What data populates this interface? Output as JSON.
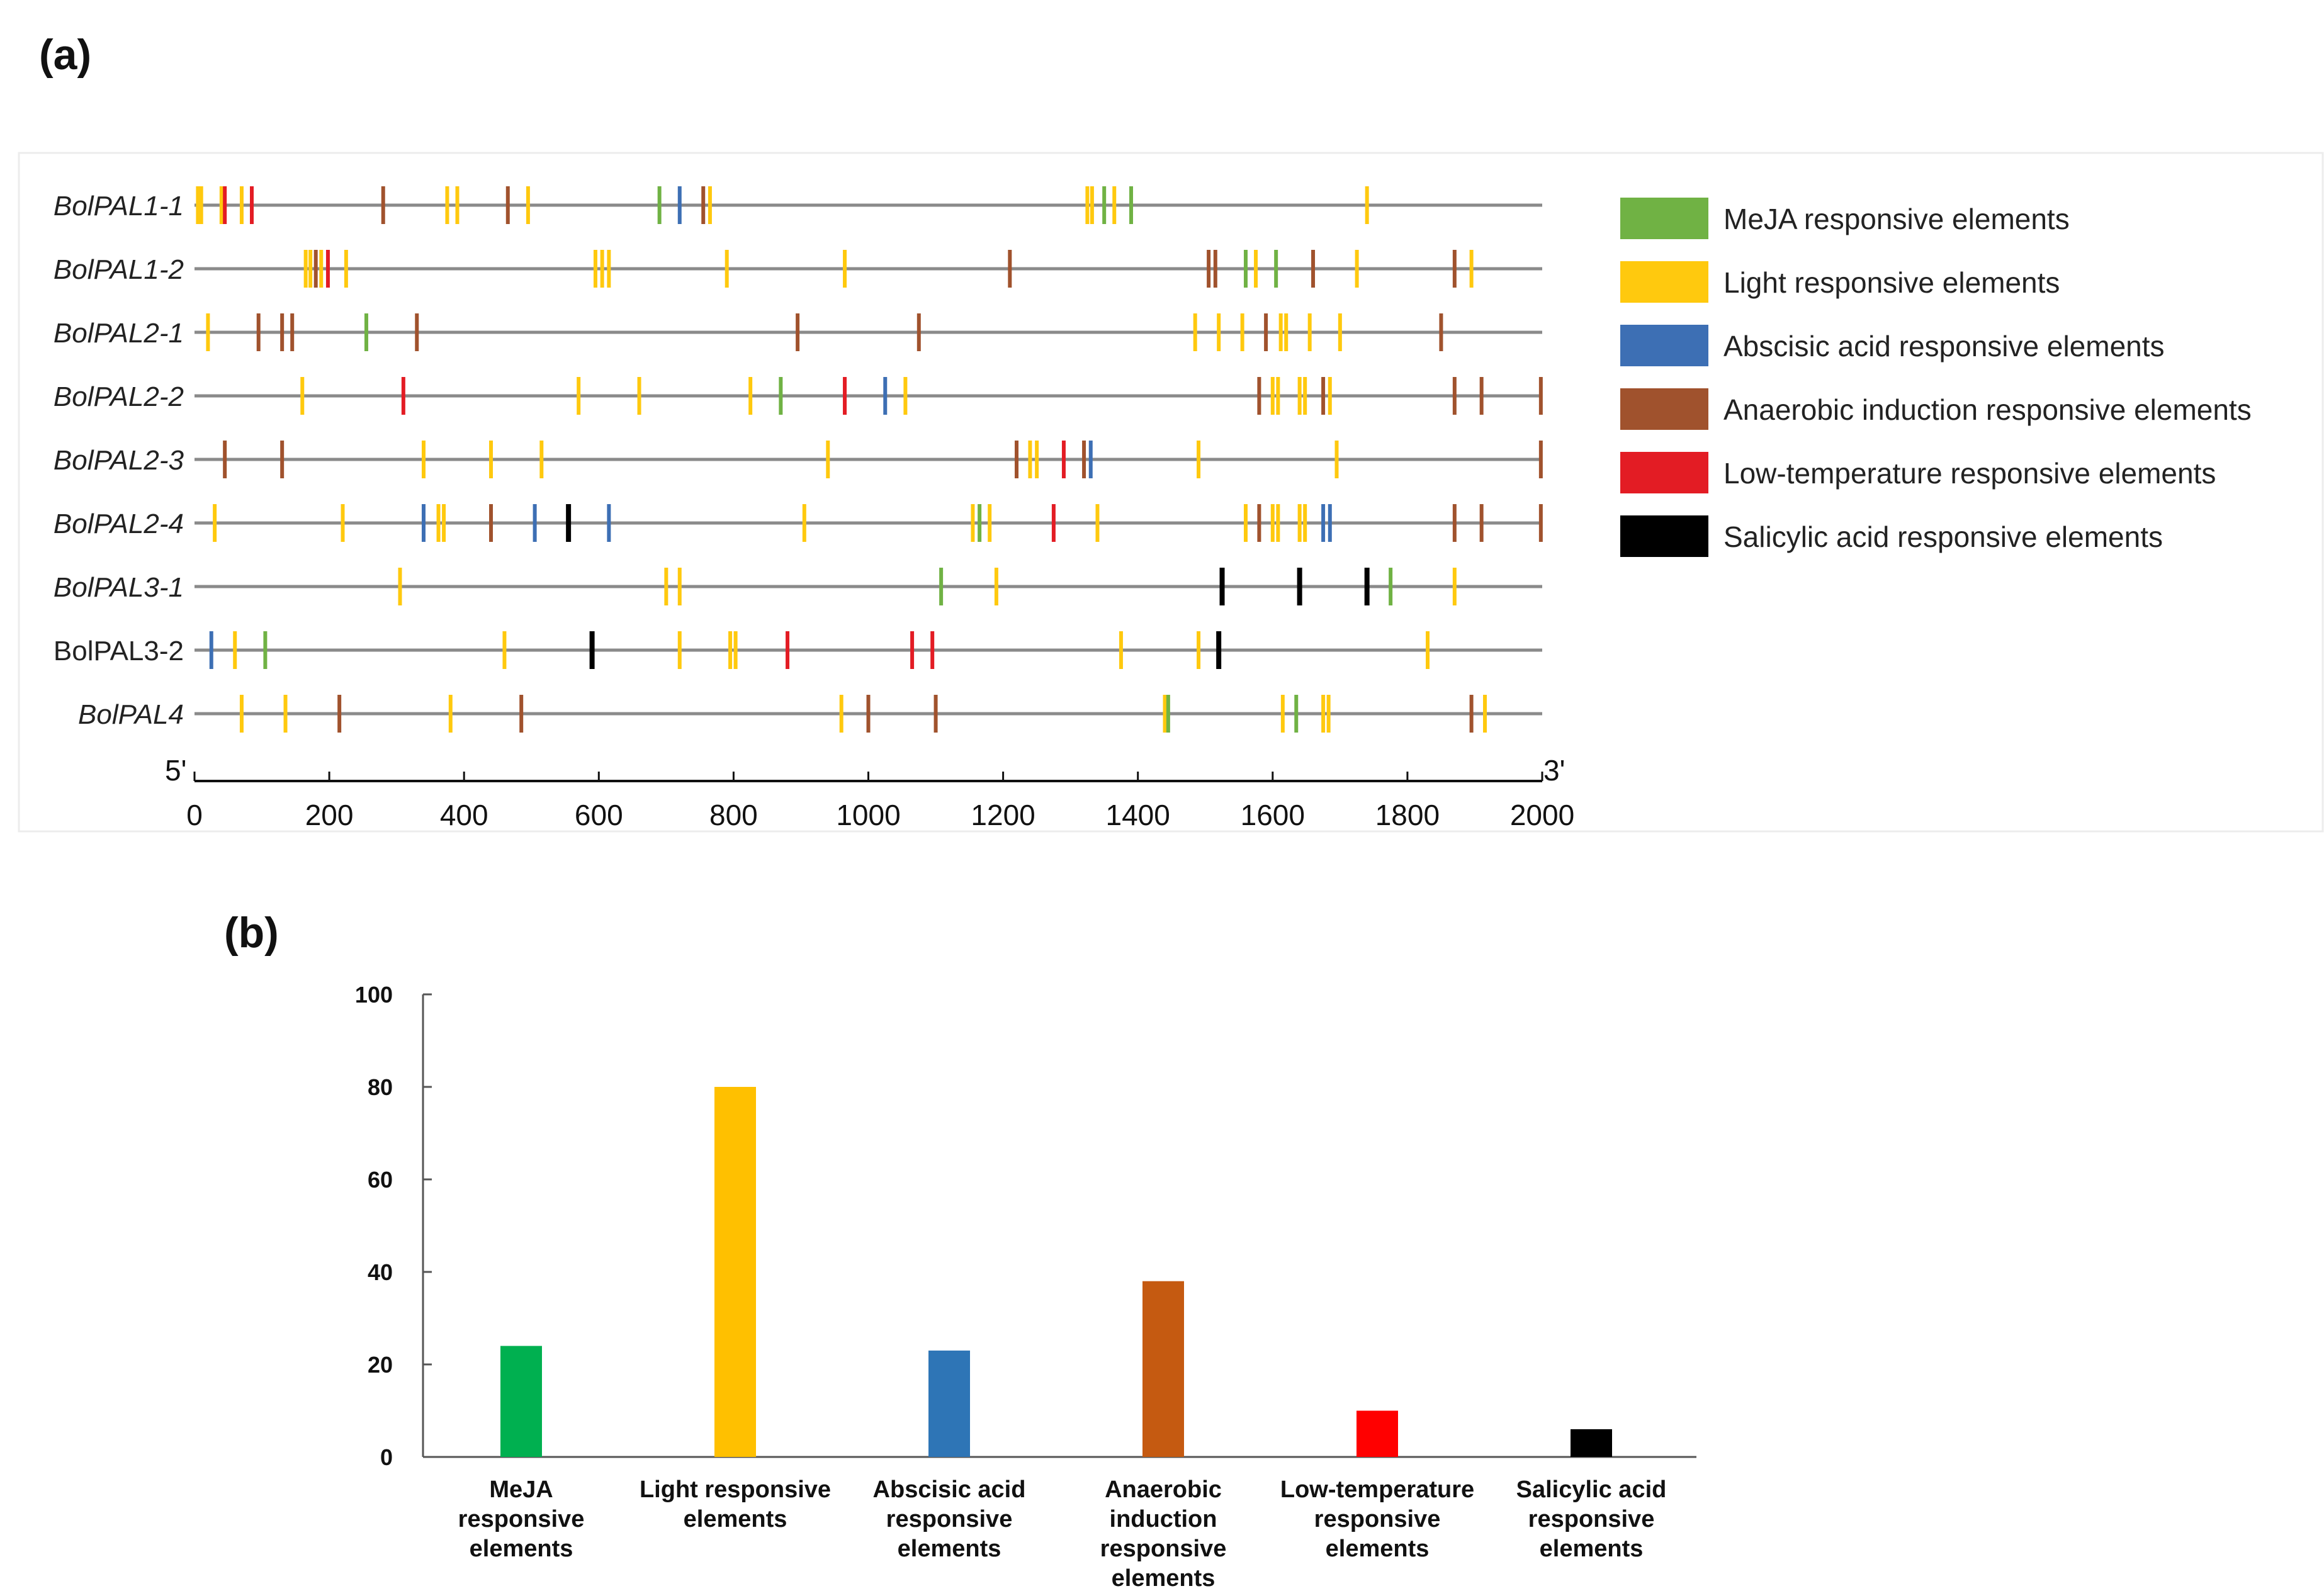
{
  "panel_a": {
    "label": "(a)",
    "x_start_label": "5'",
    "x_end_label": "3'",
    "categories": [
      {
        "key": "mj",
        "name": "MeJA responsive elements",
        "color": "#70B244"
      },
      {
        "key": "lt",
        "name": "Light responsive elements",
        "color": "#FFC90E"
      },
      {
        "key": "ab",
        "name": "Abscisic acid responsive elements",
        "color": "#3D6FB4"
      },
      {
        "key": "an",
        "name": "Anaerobic induction responsive elements",
        "color": "#A0522D"
      },
      {
        "key": "lo",
        "name": "Low-temperature responsive elements",
        "color": "#E31C24"
      },
      {
        "key": "sa",
        "name": "Salicylic acid responsive elements",
        "color": "#000000"
      }
    ],
    "genes": [
      {
        "name": "BolPAL1-1",
        "italic": true,
        "elements": [
          {
            "pos": 5,
            "type": "lt"
          },
          {
            "pos": 10,
            "type": "lt"
          },
          {
            "pos": 40,
            "type": "lt"
          },
          {
            "pos": 45,
            "type": "lo"
          },
          {
            "pos": 70,
            "type": "lt"
          },
          {
            "pos": 85,
            "type": "lo"
          },
          {
            "pos": 280,
            "type": "an"
          },
          {
            "pos": 375,
            "type": "lt"
          },
          {
            "pos": 390,
            "type": "lt"
          },
          {
            "pos": 465,
            "type": "an"
          },
          {
            "pos": 495,
            "type": "lt"
          },
          {
            "pos": 690,
            "type": "mj"
          },
          {
            "pos": 720,
            "type": "ab"
          },
          {
            "pos": 755,
            "type": "an"
          },
          {
            "pos": 765,
            "type": "lt"
          },
          {
            "pos": 1325,
            "type": "lt"
          },
          {
            "pos": 1332,
            "type": "lt"
          },
          {
            "pos": 1350,
            "type": "mj"
          },
          {
            "pos": 1365,
            "type": "lt"
          },
          {
            "pos": 1390,
            "type": "mj"
          },
          {
            "pos": 1740,
            "type": "lt"
          }
        ]
      },
      {
        "name": "BolPAL1-2",
        "italic": true,
        "elements": [
          {
            "pos": 165,
            "type": "lt"
          },
          {
            "pos": 172,
            "type": "lt"
          },
          {
            "pos": 180,
            "type": "an"
          },
          {
            "pos": 188,
            "type": "lt"
          },
          {
            "pos": 198,
            "type": "lo"
          },
          {
            "pos": 225,
            "type": "lt"
          },
          {
            "pos": 595,
            "type": "lt"
          },
          {
            "pos": 605,
            "type": "lt"
          },
          {
            "pos": 615,
            "type": "lt"
          },
          {
            "pos": 790,
            "type": "lt"
          },
          {
            "pos": 965,
            "type": "lt"
          },
          {
            "pos": 1210,
            "type": "an"
          },
          {
            "pos": 1505,
            "type": "an"
          },
          {
            "pos": 1515,
            "type": "an"
          },
          {
            "pos": 1560,
            "type": "mj"
          },
          {
            "pos": 1575,
            "type": "lt"
          },
          {
            "pos": 1605,
            "type": "mj"
          },
          {
            "pos": 1660,
            "type": "an"
          },
          {
            "pos": 1725,
            "type": "lt"
          },
          {
            "pos": 1870,
            "type": "an"
          },
          {
            "pos": 1895,
            "type": "lt"
          }
        ]
      },
      {
        "name": "BolPAL2-1",
        "italic": true,
        "elements": [
          {
            "pos": 20,
            "type": "lt"
          },
          {
            "pos": 95,
            "type": "an"
          },
          {
            "pos": 130,
            "type": "an"
          },
          {
            "pos": 145,
            "type": "an"
          },
          {
            "pos": 255,
            "type": "mj"
          },
          {
            "pos": 330,
            "type": "an"
          },
          {
            "pos": 895,
            "type": "an"
          },
          {
            "pos": 1075,
            "type": "an"
          },
          {
            "pos": 1485,
            "type": "lt"
          },
          {
            "pos": 1520,
            "type": "lt"
          },
          {
            "pos": 1555,
            "type": "lt"
          },
          {
            "pos": 1590,
            "type": "an"
          },
          {
            "pos": 1612,
            "type": "lt"
          },
          {
            "pos": 1620,
            "type": "lt"
          },
          {
            "pos": 1655,
            "type": "lt"
          },
          {
            "pos": 1700,
            "type": "lt"
          },
          {
            "pos": 1850,
            "type": "an"
          }
        ]
      },
      {
        "name": "BolPAL2-2",
        "italic": true,
        "elements": [
          {
            "pos": 160,
            "type": "lt"
          },
          {
            "pos": 310,
            "type": "lo"
          },
          {
            "pos": 570,
            "type": "lt"
          },
          {
            "pos": 660,
            "type": "lt"
          },
          {
            "pos": 825,
            "type": "lt"
          },
          {
            "pos": 870,
            "type": "mj"
          },
          {
            "pos": 965,
            "type": "lo"
          },
          {
            "pos": 1025,
            "type": "ab"
          },
          {
            "pos": 1055,
            "type": "lt"
          },
          {
            "pos": 1580,
            "type": "an"
          },
          {
            "pos": 1600,
            "type": "lt"
          },
          {
            "pos": 1608,
            "type": "lt"
          },
          {
            "pos": 1640,
            "type": "lt"
          },
          {
            "pos": 1648,
            "type": "lt"
          },
          {
            "pos": 1675,
            "type": "an"
          },
          {
            "pos": 1685,
            "type": "lt"
          },
          {
            "pos": 1870,
            "type": "an"
          },
          {
            "pos": 1910,
            "type": "an"
          },
          {
            "pos": 1998,
            "type": "an"
          }
        ]
      },
      {
        "name": "BolPAL2-3",
        "italic": true,
        "elements": [
          {
            "pos": 45,
            "type": "an"
          },
          {
            "pos": 130,
            "type": "an"
          },
          {
            "pos": 340,
            "type": "lt"
          },
          {
            "pos": 440,
            "type": "lt"
          },
          {
            "pos": 515,
            "type": "lt"
          },
          {
            "pos": 940,
            "type": "lt"
          },
          {
            "pos": 1220,
            "type": "an"
          },
          {
            "pos": 1240,
            "type": "lt"
          },
          {
            "pos": 1250,
            "type": "lt"
          },
          {
            "pos": 1290,
            "type": "lo"
          },
          {
            "pos": 1320,
            "type": "an"
          },
          {
            "pos": 1330,
            "type": "ab"
          },
          {
            "pos": 1490,
            "type": "lt"
          },
          {
            "pos": 1695,
            "type": "lt"
          },
          {
            "pos": 1998,
            "type": "an"
          }
        ]
      },
      {
        "name": "BolPAL2-4",
        "italic": true,
        "elements": [
          {
            "pos": 30,
            "type": "lt"
          },
          {
            "pos": 220,
            "type": "lt"
          },
          {
            "pos": 340,
            "type": "ab"
          },
          {
            "pos": 362,
            "type": "lt"
          },
          {
            "pos": 370,
            "type": "lt"
          },
          {
            "pos": 440,
            "type": "an"
          },
          {
            "pos": 505,
            "type": "ab"
          },
          {
            "pos": 555,
            "type": "sa"
          },
          {
            "pos": 615,
            "type": "ab"
          },
          {
            "pos": 905,
            "type": "lt"
          },
          {
            "pos": 1155,
            "type": "lt"
          },
          {
            "pos": 1165,
            "type": "mj"
          },
          {
            "pos": 1180,
            "type": "lt"
          },
          {
            "pos": 1275,
            "type": "lo"
          },
          {
            "pos": 1340,
            "type": "lt"
          },
          {
            "pos": 1560,
            "type": "lt"
          },
          {
            "pos": 1580,
            "type": "an"
          },
          {
            "pos": 1600,
            "type": "lt"
          },
          {
            "pos": 1608,
            "type": "lt"
          },
          {
            "pos": 1640,
            "type": "lt"
          },
          {
            "pos": 1648,
            "type": "lt"
          },
          {
            "pos": 1675,
            "type": "ab"
          },
          {
            "pos": 1685,
            "type": "ab"
          },
          {
            "pos": 1870,
            "type": "an"
          },
          {
            "pos": 1910,
            "type": "an"
          },
          {
            "pos": 1998,
            "type": "an"
          }
        ]
      },
      {
        "name": "BolPAL3-1",
        "italic": true,
        "elements": [
          {
            "pos": 305,
            "type": "lt"
          },
          {
            "pos": 700,
            "type": "lt"
          },
          {
            "pos": 720,
            "type": "lt"
          },
          {
            "pos": 1108,
            "type": "mj"
          },
          {
            "pos": 1190,
            "type": "lt"
          },
          {
            "pos": 1525,
            "type": "sa"
          },
          {
            "pos": 1640,
            "type": "sa"
          },
          {
            "pos": 1740,
            "type": "sa"
          },
          {
            "pos": 1775,
            "type": "mj"
          },
          {
            "pos": 1870,
            "type": "lt"
          }
        ]
      },
      {
        "name": "BolPAL3-2",
        "italic": false,
        "elements": [
          {
            "pos": 25,
            "type": "ab"
          },
          {
            "pos": 60,
            "type": "lt"
          },
          {
            "pos": 105,
            "type": "mj"
          },
          {
            "pos": 460,
            "type": "lt"
          },
          {
            "pos": 590,
            "type": "sa"
          },
          {
            "pos": 720,
            "type": "lt"
          },
          {
            "pos": 795,
            "type": "lt"
          },
          {
            "pos": 803,
            "type": "lt"
          },
          {
            "pos": 880,
            "type": "lo"
          },
          {
            "pos": 1065,
            "type": "lo"
          },
          {
            "pos": 1095,
            "type": "lo"
          },
          {
            "pos": 1375,
            "type": "lt"
          },
          {
            "pos": 1490,
            "type": "lt"
          },
          {
            "pos": 1520,
            "type": "sa"
          },
          {
            "pos": 1830,
            "type": "lt"
          }
        ]
      },
      {
        "name": "BolPAL4",
        "italic": true,
        "elements": [
          {
            "pos": 70,
            "type": "lt"
          },
          {
            "pos": 135,
            "type": "lt"
          },
          {
            "pos": 215,
            "type": "an"
          },
          {
            "pos": 380,
            "type": "lt"
          },
          {
            "pos": 485,
            "type": "an"
          },
          {
            "pos": 960,
            "type": "lt"
          },
          {
            "pos": 1000,
            "type": "an"
          },
          {
            "pos": 1100,
            "type": "an"
          },
          {
            "pos": 1440,
            "type": "lt"
          },
          {
            "pos": 1445,
            "type": "mj"
          },
          {
            "pos": 1615,
            "type": "lt"
          },
          {
            "pos": 1635,
            "type": "mj"
          },
          {
            "pos": 1675,
            "type": "lt"
          },
          {
            "pos": 1683,
            "type": "lt"
          },
          {
            "pos": 1895,
            "type": "an"
          },
          {
            "pos": 1915,
            "type": "lt"
          }
        ]
      }
    ]
  },
  "panel_b": {
    "label": "(b)"
  },
  "chart_data": [
    {
      "type": "scatter",
      "title": "",
      "xlabel": "",
      "ylabel": "",
      "xlim": [
        0,
        2000
      ],
      "x_ticks": [
        0,
        200,
        400,
        600,
        800,
        1000,
        1200,
        1400,
        1600,
        1800,
        2000
      ],
      "note": "cis-element positions per gene, see panel_a.genes"
    },
    {
      "type": "bar",
      "title": "",
      "xlabel": "",
      "ylabel": "",
      "ylim": [
        0,
        100
      ],
      "y_ticks": [
        0,
        20,
        40,
        60,
        80,
        100
      ],
      "categories": [
        "MeJA responsive elements",
        "Light responsive elements",
        "Abscisic acid responsive elements",
        "Anaerobic induction responsive elements",
        "Low-temperature responsive elements",
        "Salicylic acid responsive elements"
      ],
      "category_lines": [
        [
          "MeJA",
          "responsive",
          "elements"
        ],
        [
          "Light responsive",
          "elements"
        ],
        [
          "Abscisic acid",
          "responsive",
          "elements"
        ],
        [
          "Anaerobic",
          "induction",
          "responsive",
          "elements"
        ],
        [
          "Low-temperature",
          "responsive",
          "elements"
        ],
        [
          "Salicylic acid",
          "responsive",
          "elements"
        ]
      ],
      "values": [
        24,
        80,
        23,
        38,
        10,
        6
      ],
      "colors": [
        "#00B050",
        "#FFC000",
        "#2E75B6",
        "#C55A11",
        "#FF0000",
        "#000000"
      ]
    }
  ]
}
